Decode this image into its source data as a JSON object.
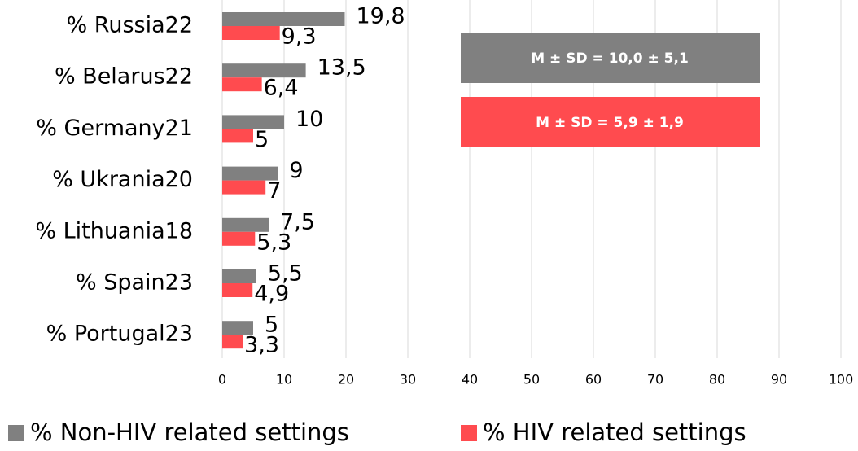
{
  "chart_data": {
    "type": "barh",
    "categories": [
      "% Russia22",
      "% Belarus22",
      "% Germany21",
      "% Ukrania20",
      "% Lithuania18",
      "% Spain23",
      "% Portugal23"
    ],
    "series": [
      {
        "name": "% Non-HIV related settings",
        "color": "#808080",
        "values": [
          19.8,
          13.5,
          10,
          9,
          7.5,
          5.5,
          5
        ],
        "value_labels": [
          "19,8",
          "13,5",
          "10",
          "9",
          "7,5",
          "5,5",
          "5"
        ]
      },
      {
        "name": "% HIV related settings",
        "color": "#ff4b4f",
        "values": [
          9.3,
          6.4,
          5,
          7,
          5.3,
          4.9,
          3.3
        ],
        "value_labels": [
          "9,3",
          "6,4",
          "5",
          "7",
          "5,3",
          "4,9",
          "3,3"
        ]
      }
    ],
    "xlim": [
      0,
      100
    ],
    "xticks": [
      0,
      10,
      20,
      30,
      40,
      50,
      60,
      70,
      80,
      90,
      100
    ],
    "grid": true,
    "annotations": [
      {
        "text": "M ± SD = 10,0 ± 5,1",
        "color": "#808080"
      },
      {
        "text": "M ± SD = 5,9 ± 1,9",
        "color": "#ff4b4f"
      }
    ],
    "legend": "bottom"
  }
}
